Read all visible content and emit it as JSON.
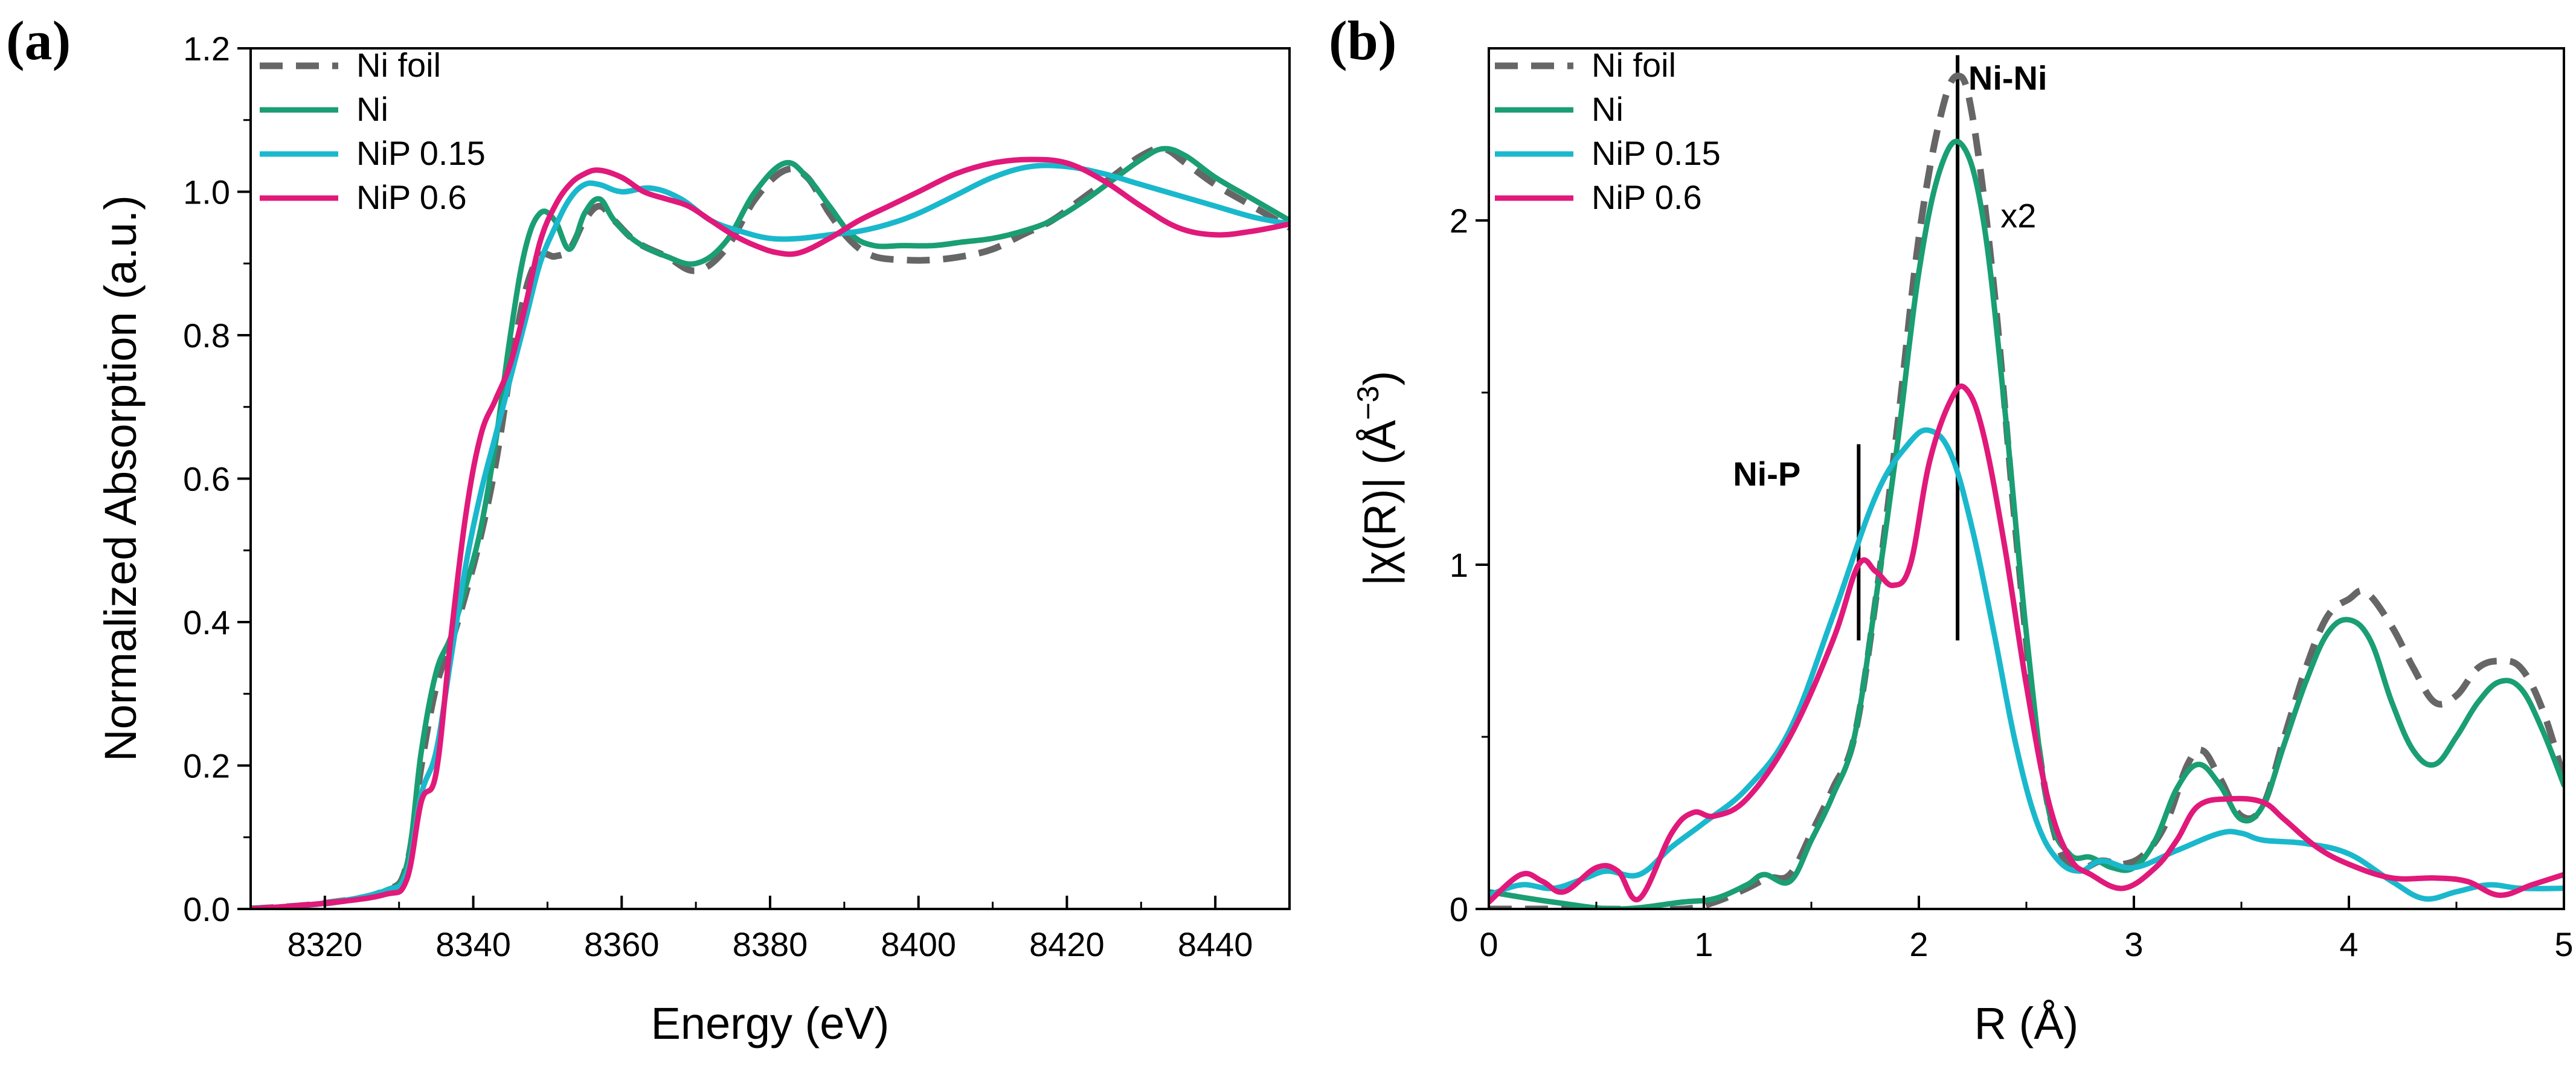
{
  "colors": {
    "ni_foil": "#666666",
    "ni": "#1a9e73",
    "nip015": "#1ab8cc",
    "nip06": "#e0197a",
    "axis": "#000000"
  },
  "chart_data": [
    {
      "panel_label": "(a)",
      "type": "line",
      "title": "",
      "xlabel": "Energy (eV)",
      "ylabel": "Normalized Absorption (a.u.)",
      "xlim": [
        8310,
        8450
      ],
      "ylim": [
        0,
        1.2
      ],
      "xticks": [
        8320,
        8340,
        8360,
        8380,
        8400,
        8420,
        8440
      ],
      "xtick_labels": [
        "8320",
        "8340",
        "8360",
        "8380",
        "8400",
        "8420",
        "8440"
      ],
      "yticks": [
        0,
        0.2,
        0.4,
        0.6,
        0.8,
        1.0,
        1.2
      ],
      "ytick_labels": [
        "0.0",
        "0.2",
        "0.4",
        "0.6",
        "0.8",
        "1.0",
        "1.2"
      ],
      "legend_position": "top-left",
      "annotations": [],
      "series": [
        {
          "name": "Ni foil",
          "color": "#666666",
          "dashed": true,
          "x": [
            8310,
            8320,
            8328,
            8331,
            8333,
            8335,
            8337,
            8339,
            8341,
            8343,
            8345,
            8347,
            8349,
            8351,
            8353,
            8355,
            8357,
            8359,
            8362,
            8366,
            8370,
            8374,
            8378,
            8382,
            8385,
            8388,
            8391,
            8394,
            8398,
            8402,
            8406,
            8410,
            8414,
            8418,
            8422,
            8426,
            8430,
            8433,
            8436,
            8440,
            8445,
            8450
          ],
          "y": [
            0.0,
            0.008,
            0.025,
            0.06,
            0.2,
            0.31,
            0.37,
            0.44,
            0.52,
            0.62,
            0.75,
            0.86,
            0.91,
            0.91,
            0.92,
            0.96,
            0.98,
            0.96,
            0.93,
            0.91,
            0.89,
            0.92,
            0.99,
            1.03,
            1.02,
            0.97,
            0.93,
            0.91,
            0.905,
            0.905,
            0.91,
            0.92,
            0.94,
            0.96,
            0.99,
            1.02,
            1.05,
            1.06,
            1.04,
            1.01,
            0.98,
            0.95
          ]
        },
        {
          "name": "Ni",
          "color": "#1a9e73",
          "dashed": false,
          "x": [
            8310,
            8320,
            8328,
            8331,
            8333,
            8335,
            8337,
            8339,
            8341,
            8343,
            8345,
            8347,
            8349,
            8351,
            8353,
            8355,
            8357,
            8359,
            8362,
            8366,
            8370,
            8374,
            8378,
            8382,
            8385,
            8388,
            8391,
            8394,
            8398,
            8402,
            8406,
            8410,
            8414,
            8418,
            8422,
            8426,
            8430,
            8433,
            8436,
            8440,
            8445,
            8450
          ],
          "y": [
            0.0,
            0.008,
            0.025,
            0.06,
            0.22,
            0.33,
            0.38,
            0.45,
            0.53,
            0.65,
            0.8,
            0.92,
            0.97,
            0.96,
            0.92,
            0.97,
            0.99,
            0.96,
            0.93,
            0.91,
            0.9,
            0.93,
            1.0,
            1.04,
            1.02,
            0.98,
            0.94,
            0.925,
            0.925,
            0.925,
            0.93,
            0.935,
            0.945,
            0.96,
            0.985,
            1.015,
            1.045,
            1.06,
            1.05,
            1.02,
            0.99,
            0.96
          ]
        },
        {
          "name": "NiP 0.15",
          "color": "#1ab8cc",
          "dashed": false,
          "x": [
            8310,
            8320,
            8328,
            8331,
            8333,
            8335,
            8337,
            8339,
            8341,
            8343,
            8345,
            8347,
            8349,
            8351,
            8353,
            8355,
            8357,
            8360,
            8364,
            8368,
            8372,
            8376,
            8380,
            8384,
            8388,
            8392,
            8396,
            8400,
            8405,
            8410,
            8415,
            8420,
            8425,
            8430,
            8435,
            8440,
            8445,
            8450
          ],
          "y": [
            0.0,
            0.008,
            0.025,
            0.05,
            0.16,
            0.22,
            0.35,
            0.48,
            0.58,
            0.66,
            0.74,
            0.82,
            0.9,
            0.95,
            0.99,
            1.01,
            1.01,
            1.0,
            1.005,
            0.99,
            0.96,
            0.945,
            0.935,
            0.935,
            0.94,
            0.945,
            0.955,
            0.97,
            0.995,
            1.02,
            1.035,
            1.035,
            1.025,
            1.01,
            0.995,
            0.98,
            0.965,
            0.955
          ]
        },
        {
          "name": "NiP 0.6",
          "color": "#e0197a",
          "dashed": false,
          "x": [
            8310,
            8320,
            8328,
            8331,
            8333,
            8335,
            8337,
            8339,
            8341,
            8343,
            8345,
            8347,
            8349,
            8351,
            8353,
            8355,
            8357,
            8360,
            8363,
            8366,
            8369,
            8372,
            8375,
            8378,
            8381,
            8384,
            8388,
            8392,
            8396,
            8400,
            8405,
            8410,
            8415,
            8420,
            8425,
            8430,
            8435,
            8440,
            8445,
            8450
          ],
          "y": [
            0.0,
            0.008,
            0.02,
            0.04,
            0.15,
            0.19,
            0.38,
            0.55,
            0.66,
            0.71,
            0.76,
            0.84,
            0.93,
            0.98,
            1.01,
            1.025,
            1.03,
            1.02,
            1.0,
            0.99,
            0.98,
            0.96,
            0.94,
            0.925,
            0.915,
            0.915,
            0.935,
            0.96,
            0.98,
            1.0,
            1.025,
            1.04,
            1.045,
            1.04,
            1.015,
            0.98,
            0.95,
            0.94,
            0.945,
            0.955
          ]
        }
      ]
    },
    {
      "panel_label": "(b)",
      "type": "line",
      "title": "",
      "xlabel": "R (Å)",
      "ylabel_main": "|χ(R)| (Å",
      "ylabel_sup": "−3",
      "ylabel_end": ")",
      "xlim": [
        0,
        5
      ],
      "ylim": [
        0,
        2.5
      ],
      "xticks": [
        0,
        1,
        2,
        3,
        4,
        5
      ],
      "xtick_labels": [
        "0",
        "1",
        "2",
        "3",
        "4",
        "5"
      ],
      "yticks": [
        0,
        1,
        2
      ],
      "ytick_labels": [
        "0",
        "1",
        "2"
      ],
      "legend_position": "top-left",
      "annotations": [
        {
          "text": "Ni-Ni",
          "x": 2.23,
          "y": 2.38,
          "bold": true,
          "line_x": 2.18,
          "line_y": [
            0.78,
            2.48
          ]
        },
        {
          "text": "Ni-P",
          "x": 1.45,
          "y": 1.23,
          "bold": true,
          "line_x": 1.72,
          "line_y": [
            0.78,
            1.35
          ]
        },
        {
          "text": "x2",
          "x": 2.38,
          "y": 1.98,
          "bold": false
        }
      ],
      "series": [
        {
          "name": "Ni foil",
          "color": "#666666",
          "dashed": true,
          "x": [
            0,
            0.5,
            0.9,
            1.05,
            1.2,
            1.3,
            1.4,
            1.5,
            1.6,
            1.7,
            1.8,
            1.9,
            2.0,
            2.1,
            2.18,
            2.25,
            2.35,
            2.45,
            2.55,
            2.65,
            2.75,
            2.85,
            2.95,
            3.05,
            3.15,
            3.25,
            3.32,
            3.4,
            3.5,
            3.6,
            3.7,
            3.8,
            3.9,
            4.0,
            4.08,
            4.2,
            4.3,
            4.4,
            4.5,
            4.6,
            4.7,
            4.8,
            4.9,
            5.0
          ],
          "y": [
            0.0,
            0.0,
            0.0,
            0.02,
            0.06,
            0.09,
            0.1,
            0.22,
            0.35,
            0.5,
            0.9,
            1.4,
            1.95,
            2.3,
            2.42,
            2.3,
            1.8,
            1.1,
            0.5,
            0.18,
            0.12,
            0.14,
            0.13,
            0.16,
            0.25,
            0.42,
            0.46,
            0.38,
            0.27,
            0.3,
            0.5,
            0.7,
            0.85,
            0.9,
            0.92,
            0.82,
            0.7,
            0.6,
            0.62,
            0.7,
            0.72,
            0.7,
            0.58,
            0.38
          ]
        },
        {
          "name": "Ni",
          "color": "#1a9e73",
          "dashed": false,
          "x": [
            0,
            0.3,
            0.6,
            0.9,
            1.05,
            1.2,
            1.28,
            1.4,
            1.5,
            1.6,
            1.7,
            1.8,
            1.9,
            2.0,
            2.1,
            2.2,
            2.3,
            2.4,
            2.5,
            2.6,
            2.7,
            2.8,
            2.9,
            3.0,
            3.1,
            3.2,
            3.3,
            3.4,
            3.5,
            3.6,
            3.7,
            3.8,
            3.9,
            4.0,
            4.1,
            4.2,
            4.3,
            4.4,
            4.5,
            4.6,
            4.7,
            4.8,
            4.9,
            5.0
          ],
          "y": [
            0.05,
            0.02,
            0.0,
            0.02,
            0.03,
            0.07,
            0.1,
            0.08,
            0.2,
            0.33,
            0.5,
            0.9,
            1.35,
            1.85,
            2.15,
            2.22,
            2.0,
            1.45,
            0.8,
            0.3,
            0.16,
            0.15,
            0.12,
            0.12,
            0.2,
            0.35,
            0.42,
            0.36,
            0.26,
            0.3,
            0.48,
            0.66,
            0.8,
            0.84,
            0.78,
            0.6,
            0.46,
            0.42,
            0.5,
            0.6,
            0.66,
            0.64,
            0.52,
            0.36
          ]
        },
        {
          "name": "NiP 0.15",
          "color": "#1ab8cc",
          "dashed": false,
          "x": [
            0,
            0.15,
            0.3,
            0.45,
            0.55,
            0.7,
            0.85,
            1.0,
            1.2,
            1.4,
            1.6,
            1.8,
            1.95,
            2.05,
            2.15,
            2.25,
            2.35,
            2.45,
            2.55,
            2.65,
            2.75,
            2.85,
            3.0,
            3.2,
            3.4,
            3.5,
            3.6,
            3.8,
            4.0,
            4.2,
            4.35,
            4.5,
            4.65,
            4.8,
            5.0
          ],
          "y": [
            0.04,
            0.07,
            0.06,
            0.09,
            0.11,
            0.1,
            0.18,
            0.25,
            0.35,
            0.52,
            0.85,
            1.2,
            1.35,
            1.39,
            1.32,
            1.1,
            0.8,
            0.48,
            0.25,
            0.14,
            0.11,
            0.14,
            0.12,
            0.17,
            0.22,
            0.22,
            0.2,
            0.19,
            0.16,
            0.08,
            0.03,
            0.05,
            0.07,
            0.06,
            0.06
          ]
        },
        {
          "name": "NiP 0.6",
          "color": "#e0197a",
          "dashed": false,
          "x": [
            0,
            0.15,
            0.25,
            0.35,
            0.5,
            0.6,
            0.7,
            0.85,
            0.95,
            1.05,
            1.2,
            1.4,
            1.6,
            1.72,
            1.8,
            1.88,
            1.96,
            2.05,
            2.15,
            2.22,
            2.3,
            2.4,
            2.5,
            2.6,
            2.7,
            2.8,
            2.95,
            3.1,
            3.2,
            3.3,
            3.45,
            3.6,
            3.7,
            3.85,
            4.0,
            4.2,
            4.4,
            4.55,
            4.7,
            4.85,
            5.0
          ],
          "y": [
            0.02,
            0.1,
            0.08,
            0.05,
            0.12,
            0.11,
            0.03,
            0.22,
            0.28,
            0.27,
            0.32,
            0.5,
            0.78,
            1.0,
            0.98,
            0.94,
            1.0,
            1.3,
            1.48,
            1.51,
            1.38,
            1.05,
            0.65,
            0.32,
            0.15,
            0.1,
            0.06,
            0.12,
            0.2,
            0.3,
            0.32,
            0.31,
            0.26,
            0.18,
            0.13,
            0.09,
            0.09,
            0.08,
            0.04,
            0.07,
            0.1
          ]
        }
      ]
    }
  ]
}
